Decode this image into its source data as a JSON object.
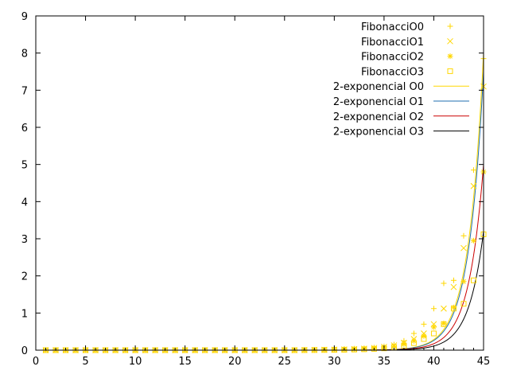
{
  "chart_data": {
    "type": "scatter",
    "title": "",
    "xlabel": "",
    "ylabel": "",
    "xlim": [
      0,
      45
    ],
    "ylim": [
      0,
      9
    ],
    "grid": false,
    "legend_position": "top-right",
    "x_ticks": [
      0,
      5,
      10,
      15,
      20,
      25,
      30,
      35,
      40,
      45
    ],
    "y_ticks": [
      0,
      1,
      2,
      3,
      4,
      5,
      6,
      7,
      8,
      9
    ],
    "point_color": "#ffd700",
    "scatter_series": [
      {
        "name": "FibonacciO0",
        "marker": "plus",
        "x": [
          1,
          2,
          3,
          4,
          5,
          6,
          7,
          8,
          9,
          10,
          11,
          12,
          13,
          14,
          15,
          16,
          17,
          18,
          19,
          20,
          21,
          22,
          23,
          24,
          25,
          26,
          27,
          28,
          29,
          30,
          31,
          32,
          33,
          34,
          35,
          36,
          37,
          38,
          39,
          40,
          41,
          42,
          43,
          44,
          45
        ],
        "y": [
          0,
          0,
          0,
          0,
          0,
          0,
          0,
          0,
          0,
          0,
          0,
          0,
          0,
          0,
          0,
          0,
          0,
          0,
          0,
          0,
          0,
          0,
          0,
          0,
          0,
          0,
          0.005,
          0.008,
          0.012,
          0.02,
          0.03,
          0.04,
          0.05,
          0.07,
          0.1,
          0.15,
          0.25,
          0.45,
          0.7,
          1.12,
          1.8,
          1.88,
          3.08,
          4.85,
          7.85
        ]
      },
      {
        "name": "FibonacciO1",
        "marker": "cross",
        "x": [
          1,
          2,
          3,
          4,
          5,
          6,
          7,
          8,
          9,
          10,
          11,
          12,
          13,
          14,
          15,
          16,
          17,
          18,
          19,
          20,
          21,
          22,
          23,
          24,
          25,
          26,
          27,
          28,
          29,
          30,
          31,
          32,
          33,
          34,
          35,
          36,
          37,
          38,
          39,
          40,
          41,
          42,
          43,
          44,
          45
        ],
        "y": [
          0,
          0,
          0,
          0,
          0,
          0,
          0,
          0,
          0,
          0,
          0,
          0,
          0,
          0,
          0,
          0,
          0,
          0,
          0,
          0,
          0,
          0,
          0,
          0,
          0,
          0,
          0.004,
          0.007,
          0.01,
          0.015,
          0.02,
          0.03,
          0.04,
          0.06,
          0.09,
          0.13,
          0.2,
          0.3,
          0.45,
          0.7,
          1.12,
          1.7,
          2.75,
          4.42,
          7.1
        ]
      },
      {
        "name": "FibonacciO2",
        "marker": "star",
        "x": [
          1,
          2,
          3,
          4,
          5,
          6,
          7,
          8,
          9,
          10,
          11,
          12,
          13,
          14,
          15,
          16,
          17,
          18,
          19,
          20,
          21,
          22,
          23,
          24,
          25,
          26,
          27,
          28,
          29,
          30,
          31,
          32,
          33,
          34,
          35,
          36,
          37,
          38,
          39,
          40,
          41,
          42,
          43,
          44,
          45
        ],
        "y": [
          0,
          0,
          0,
          0,
          0,
          0,
          0,
          0,
          0,
          0,
          0,
          0,
          0,
          0,
          0,
          0,
          0,
          0,
          0,
          0,
          0,
          0,
          0,
          0,
          0,
          0,
          0.003,
          0.005,
          0.008,
          0.012,
          0.018,
          0.025,
          0.035,
          0.05,
          0.07,
          0.1,
          0.16,
          0.25,
          0.38,
          0.62,
          0.72,
          1.15,
          1.85,
          2.95,
          4.8
        ]
      },
      {
        "name": "FibonacciO3",
        "marker": "square",
        "x": [
          1,
          2,
          3,
          4,
          5,
          6,
          7,
          8,
          9,
          10,
          11,
          12,
          13,
          14,
          15,
          16,
          17,
          18,
          19,
          20,
          21,
          22,
          23,
          24,
          25,
          26,
          27,
          28,
          29,
          30,
          31,
          32,
          33,
          34,
          35,
          36,
          37,
          38,
          39,
          40,
          41,
          42,
          43,
          44,
          45
        ],
        "y": [
          0,
          0,
          0,
          0,
          0,
          0,
          0,
          0,
          0,
          0,
          0,
          0,
          0,
          0,
          0,
          0,
          0,
          0,
          0,
          0,
          0,
          0,
          0,
          0,
          0,
          0,
          0.002,
          0.004,
          0.006,
          0.008,
          0.012,
          0.017,
          0.024,
          0.035,
          0.05,
          0.08,
          0.12,
          0.19,
          0.3,
          0.45,
          0.7,
          1.12,
          1.25,
          1.88,
          3.12
        ]
      }
    ],
    "line_series": [
      {
        "name": "2-exponencial O0",
        "color": "#ffd700",
        "x0": 32,
        "y0": 0.0014,
        "x1": 45,
        "y1": 8.0
      },
      {
        "name": "2-exponencial O1",
        "color": "#1f6fb0",
        "x0": 32,
        "y0": 0.00121,
        "x1": 45,
        "y1": 7.5
      },
      {
        "name": "2-exponencial O2",
        "color": "#cc0000",
        "x0": 32,
        "y0": 0.00081,
        "x1": 45,
        "y1": 5.0
      },
      {
        "name": "2-exponencial O3",
        "color": "#000000",
        "x0": 32,
        "y0": 0.00052,
        "x1": 45,
        "y1": 3.2
      }
    ]
  }
}
